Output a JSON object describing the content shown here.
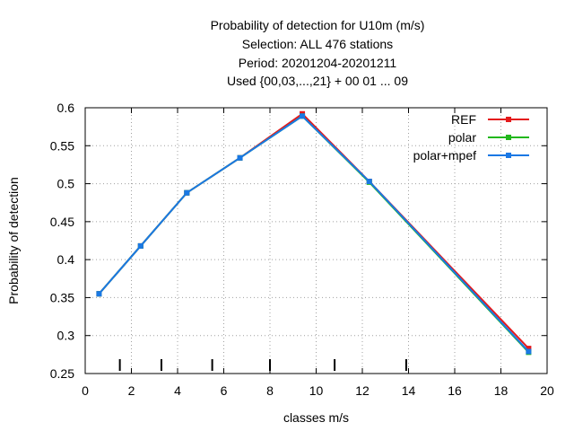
{
  "chart_data": {
    "type": "line",
    "title_lines": [
      "Probability of detection  for U10m (m/s)",
      "Selection: ALL    476 stations",
      "Period: 20201204-20201211",
      "Used {00,03,...,21} + 00 01 ... 09"
    ],
    "xlabel": "classes m/s",
    "ylabel": "Probability of detection",
    "xlim": [
      0,
      20
    ],
    "ylim": [
      0.25,
      0.6
    ],
    "xticks": [
      0,
      2,
      4,
      6,
      8,
      10,
      12,
      14,
      16,
      18,
      20
    ],
    "yticks": [
      0.25,
      0.3,
      0.35,
      0.4,
      0.45,
      0.5,
      0.55,
      0.6
    ],
    "grid": true,
    "legend_position": "top-right",
    "class_markers_x": [
      1.5,
      3.3,
      5.5,
      8.0,
      10.8,
      13.9
    ],
    "x": [
      0.6,
      2.4,
      4.4,
      6.7,
      9.4,
      12.3,
      19.2
    ],
    "series": [
      {
        "name": "REF",
        "color": "#e41a1c",
        "values": [
          0.355,
          0.418,
          0.488,
          0.534,
          0.592,
          0.503,
          0.283
        ]
      },
      {
        "name": "polar",
        "color": "#22b81c",
        "values": [
          0.355,
          0.418,
          0.488,
          0.534,
          0.589,
          0.502,
          0.278
        ]
      },
      {
        "name": "polar+mpef",
        "color": "#1a78e4",
        "values": [
          0.355,
          0.418,
          0.488,
          0.534,
          0.589,
          0.503,
          0.279
        ]
      }
    ]
  }
}
